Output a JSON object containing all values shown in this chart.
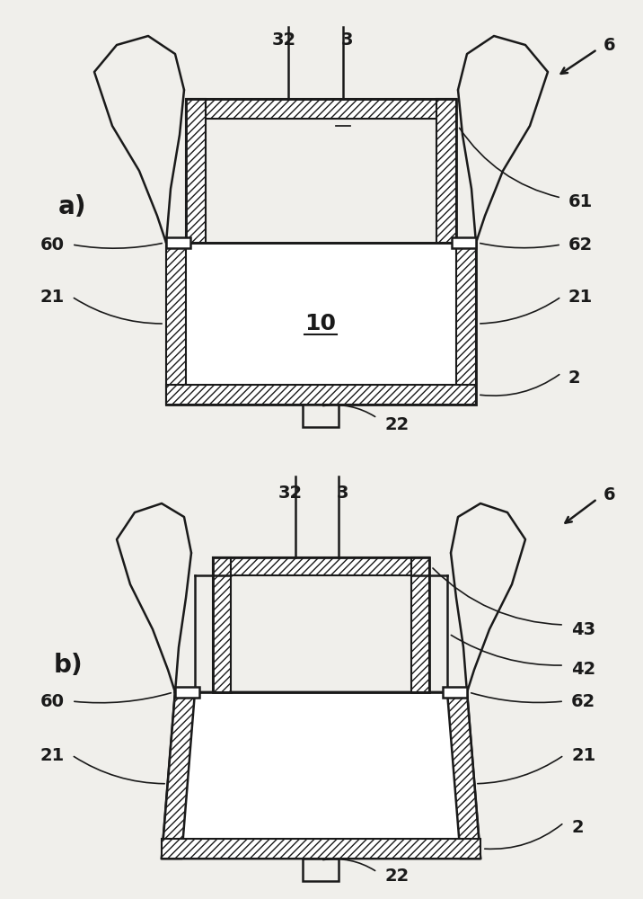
{
  "bg_color": "#f0efeb",
  "line_color": "#1a1a1a",
  "hatch_pattern": "////",
  "fig_width": 7.16,
  "fig_height": 10.0,
  "label_fontsize": 14,
  "sublabel_fontsize": 20
}
